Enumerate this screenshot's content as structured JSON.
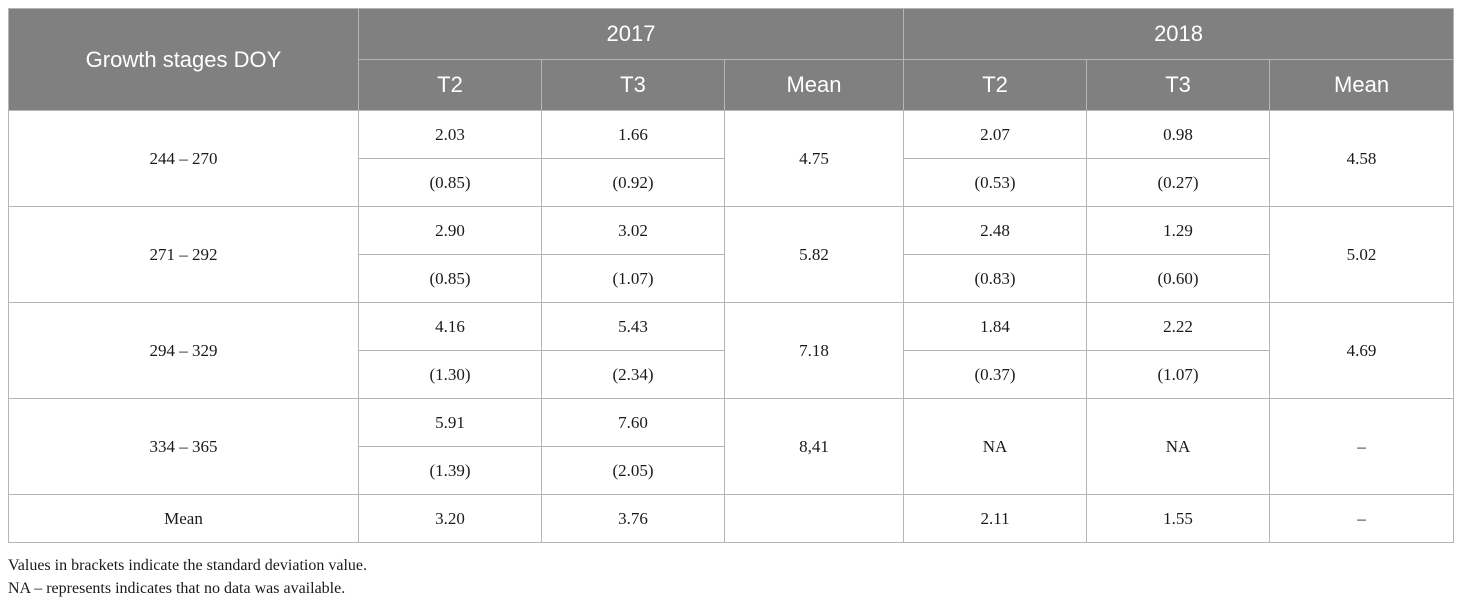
{
  "table": {
    "header": {
      "stage_label": "Growth stages DOY",
      "years": [
        "2017",
        "2018"
      ],
      "sub_columns": [
        "T2",
        "T3",
        "Mean"
      ]
    },
    "rows": [
      {
        "stage": "244 – 270",
        "y2017": {
          "t2": "2.03",
          "t2_sd": "(0.85)",
          "t3": "1.66",
          "t3_sd": "(0.92)",
          "mean": "4.75"
        },
        "y2018": {
          "t2": "2.07",
          "t2_sd": "(0.53)",
          "t3": "0.98",
          "t3_sd": "(0.27)",
          "mean": "4.58"
        }
      },
      {
        "stage": "271 – 292",
        "y2017": {
          "t2": "2.90",
          "t2_sd": "(0.85)",
          "t3": "3.02",
          "t3_sd": "(1.07)",
          "mean": "5.82"
        },
        "y2018": {
          "t2": "2.48",
          "t2_sd": "(0.83)",
          "t3": "1.29",
          "t3_sd": "(0.60)",
          "mean": "5.02"
        }
      },
      {
        "stage": "294 – 329",
        "y2017": {
          "t2": "4.16",
          "t2_sd": "(1.30)",
          "t3": "5.43",
          "t3_sd": "(2.34)",
          "mean": "7.18"
        },
        "y2018": {
          "t2": "1.84",
          "t2_sd": "(0.37)",
          "t3": "2.22",
          "t3_sd": "(1.07)",
          "mean": "4.69"
        }
      }
    ],
    "row_334": {
      "stage": "334 – 365",
      "y2017": {
        "t2": "5.91",
        "t2_sd": "(1.39)",
        "t3": "7.60",
        "t3_sd": "(2.05)",
        "mean": "8,41"
      },
      "y2018": {
        "t2": "NA",
        "t3": "NA",
        "mean": "–"
      }
    },
    "mean_row": {
      "label": "Mean",
      "y2017": {
        "t2": "3.20",
        "t3": "3.76",
        "mean": ""
      },
      "y2018": {
        "t2": "2.11",
        "t3": "1.55",
        "mean": "–"
      }
    }
  },
  "notes": [
    "Values in brackets indicate the standard deviation value.",
    "NA – represents indicates that no data was available."
  ]
}
